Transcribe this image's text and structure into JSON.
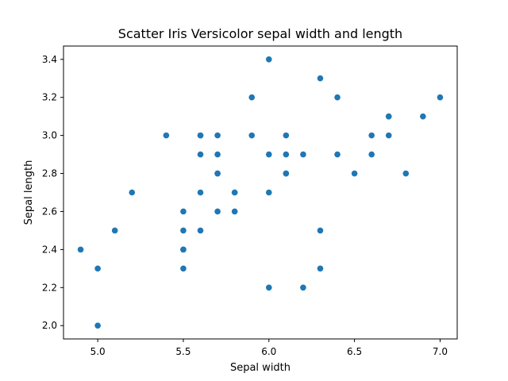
{
  "chart_data": {
    "type": "scatter",
    "title": "Scatter Iris Versicolor sepal width and length",
    "xlabel": "Sepal width",
    "ylabel": "Sepal length",
    "xlim": [
      4.8,
      7.1
    ],
    "ylim": [
      1.93,
      3.47
    ],
    "xticks": [
      5.0,
      5.5,
      6.0,
      6.5,
      7.0
    ],
    "xtick_labels": [
      "5.0",
      "5.5",
      "6.0",
      "6.5",
      "7.0"
    ],
    "yticks": [
      2.0,
      2.2,
      2.4,
      2.6,
      2.8,
      3.0,
      3.2,
      3.4
    ],
    "ytick_labels": [
      "2.0",
      "2.2",
      "2.4",
      "2.6",
      "2.8",
      "3.0",
      "3.2",
      "3.4"
    ],
    "grid": false,
    "marker_color": "#1f77b4",
    "x": [
      7.0,
      6.4,
      6.9,
      5.5,
      6.5,
      5.7,
      6.3,
      4.9,
      6.6,
      5.2,
      5.0,
      5.9,
      6.0,
      6.1,
      5.6,
      6.7,
      5.6,
      5.8,
      6.2,
      5.6,
      5.9,
      6.1,
      6.3,
      6.1,
      6.4,
      6.6,
      6.8,
      6.7,
      6.0,
      5.7,
      5.5,
      5.5,
      5.8,
      6.0,
      5.4,
      6.0,
      6.7,
      6.3,
      5.6,
      5.5,
      5.5,
      6.1,
      5.8,
      5.0,
      5.6,
      5.7,
      5.7,
      6.2,
      5.1,
      5.7
    ],
    "y": [
      3.2,
      3.2,
      3.1,
      2.3,
      2.8,
      2.8,
      3.3,
      2.4,
      2.9,
      2.7,
      2.0,
      3.0,
      2.2,
      2.9,
      2.9,
      3.1,
      3.0,
      2.7,
      2.2,
      2.5,
      3.2,
      2.8,
      2.5,
      2.8,
      2.9,
      3.0,
      2.8,
      3.0,
      2.9,
      2.6,
      2.4,
      2.4,
      2.7,
      2.7,
      3.0,
      3.4,
      3.1,
      2.3,
      3.0,
      2.5,
      2.6,
      3.0,
      2.6,
      2.3,
      2.7,
      3.0,
      2.9,
      2.9,
      2.5,
      2.8
    ]
  }
}
